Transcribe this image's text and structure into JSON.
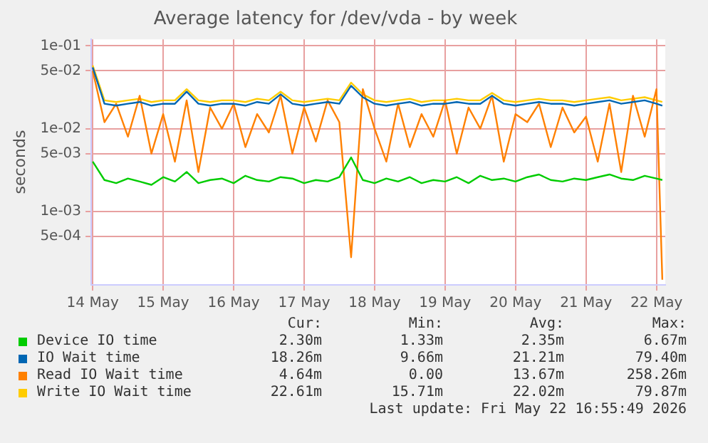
{
  "chart_data": {
    "type": "line",
    "title": "Average latency for /dev/vda - by week",
    "ylabel": "seconds",
    "log": "y",
    "grid": true,
    "legend": "bottom",
    "marker": "none",
    "line_style": "solid",
    "x": [
      "2026-05-14T00:00",
      "2026-05-14T04:00",
      "2026-05-14T08:00",
      "2026-05-14T12:00",
      "2026-05-14T16:00",
      "2026-05-14T20:00",
      "2026-05-15T00:00",
      "2026-05-15T04:00",
      "2026-05-15T08:00",
      "2026-05-15T12:00",
      "2026-05-15T16:00",
      "2026-05-15T20:00",
      "2026-05-16T00:00",
      "2026-05-16T04:00",
      "2026-05-16T08:00",
      "2026-05-16T12:00",
      "2026-05-16T16:00",
      "2026-05-16T20:00",
      "2026-05-17T00:00",
      "2026-05-17T04:00",
      "2026-05-17T08:00",
      "2026-05-17T12:00",
      "2026-05-17T16:00",
      "2026-05-17T20:00",
      "2026-05-18T00:00",
      "2026-05-18T04:00",
      "2026-05-18T08:00",
      "2026-05-18T12:00",
      "2026-05-18T16:00",
      "2026-05-18T20:00",
      "2026-05-19T00:00",
      "2026-05-19T04:00",
      "2026-05-19T08:00",
      "2026-05-19T12:00",
      "2026-05-19T16:00",
      "2026-05-19T20:00",
      "2026-05-20T00:00",
      "2026-05-20T04:00",
      "2026-05-20T08:00",
      "2026-05-20T12:00",
      "2026-05-20T16:00",
      "2026-05-20T20:00",
      "2026-05-21T00:00",
      "2026-05-21T04:00",
      "2026-05-21T08:00",
      "2026-05-21T12:00",
      "2026-05-21T16:00",
      "2026-05-21T20:00",
      "2026-05-22T00:00",
      "2026-05-22T02:00"
    ],
    "xlim": [
      "2026-05-13T23:30",
      "2026-05-22T03:00"
    ],
    "xticks": [
      {
        "value": "2026-05-14",
        "label": "14 May"
      },
      {
        "value": "2026-05-15",
        "label": "15 May"
      },
      {
        "value": "2026-05-16",
        "label": "16 May"
      },
      {
        "value": "2026-05-17",
        "label": "17 May"
      },
      {
        "value": "2026-05-18",
        "label": "18 May"
      },
      {
        "value": "2026-05-19",
        "label": "19 May"
      },
      {
        "value": "2026-05-20",
        "label": "20 May"
      },
      {
        "value": "2026-05-21",
        "label": "21 May"
      },
      {
        "value": "2026-05-22",
        "label": "22 May"
      }
    ],
    "ylim": [
      0.00013,
      0.12
    ],
    "yticks": [
      {
        "value": 0.1,
        "label": "1e-01"
      },
      {
        "value": 0.05,
        "label": "5e-02"
      },
      {
        "value": 0.01,
        "label": "1e-02"
      },
      {
        "value": 0.005,
        "label": "5e-03"
      },
      {
        "value": 0.001,
        "label": "1e-03"
      },
      {
        "value": 0.0005,
        "label": "5e-04"
      }
    ],
    "series": [
      {
        "name": "Device IO time",
        "color": "#00cc00",
        "values": [
          0.004,
          0.0024,
          0.0022,
          0.0025,
          0.0023,
          0.0021,
          0.0026,
          0.0023,
          0.003,
          0.0022,
          0.0024,
          0.0025,
          0.0022,
          0.0027,
          0.0024,
          0.0023,
          0.0026,
          0.0025,
          0.0022,
          0.0024,
          0.0023,
          0.0026,
          0.0045,
          0.0024,
          0.0022,
          0.0025,
          0.0023,
          0.0026,
          0.0022,
          0.0024,
          0.0023,
          0.0026,
          0.0022,
          0.0027,
          0.0024,
          0.0025,
          0.0023,
          0.0026,
          0.0028,
          0.0024,
          0.0023,
          0.0025,
          0.0024,
          0.0026,
          0.0028,
          0.0025,
          0.0024,
          0.0027,
          0.0025,
          0.0024
        ]
      },
      {
        "name": "IO Wait time",
        "color": "#0066b3",
        "values": [
          0.055,
          0.02,
          0.019,
          0.02,
          0.021,
          0.019,
          0.02,
          0.02,
          0.028,
          0.02,
          0.019,
          0.02,
          0.02,
          0.019,
          0.021,
          0.02,
          0.026,
          0.02,
          0.019,
          0.02,
          0.021,
          0.02,
          0.033,
          0.024,
          0.02,
          0.019,
          0.02,
          0.021,
          0.019,
          0.02,
          0.02,
          0.021,
          0.02,
          0.02,
          0.025,
          0.02,
          0.019,
          0.02,
          0.021,
          0.02,
          0.02,
          0.019,
          0.02,
          0.021,
          0.022,
          0.02,
          0.021,
          0.022,
          0.02,
          0.019
        ]
      },
      {
        "name": "Read IO Wait time",
        "color": "#ff8000",
        "values": [
          0.05,
          0.012,
          0.02,
          0.008,
          0.025,
          0.005,
          0.015,
          0.004,
          0.022,
          0.003,
          0.018,
          0.01,
          0.02,
          0.006,
          0.015,
          0.009,
          0.025,
          0.005,
          0.018,
          0.007,
          0.022,
          0.012,
          0.00028,
          0.03,
          0.01,
          0.004,
          0.02,
          0.006,
          0.015,
          0.008,
          0.022,
          0.005,
          0.018,
          0.01,
          0.025,
          0.004,
          0.015,
          0.012,
          0.02,
          0.006,
          0.018,
          0.009,
          0.014,
          0.004,
          0.02,
          0.003,
          0.025,
          0.008,
          0.03,
          0.00015
        ]
      },
      {
        "name": "Write IO Wait time",
        "color": "#ffcc00",
        "values": [
          0.058,
          0.022,
          0.021,
          0.022,
          0.023,
          0.021,
          0.022,
          0.022,
          0.03,
          0.022,
          0.021,
          0.022,
          0.022,
          0.021,
          0.023,
          0.022,
          0.028,
          0.022,
          0.021,
          0.022,
          0.023,
          0.022,
          0.036,
          0.026,
          0.022,
          0.021,
          0.022,
          0.023,
          0.021,
          0.022,
          0.022,
          0.023,
          0.022,
          0.022,
          0.027,
          0.022,
          0.021,
          0.022,
          0.023,
          0.022,
          0.022,
          0.021,
          0.022,
          0.023,
          0.024,
          0.022,
          0.023,
          0.024,
          0.022,
          0.021
        ]
      }
    ],
    "annotations": [
      "Cur:",
      "Min:",
      "Avg:",
      "Max:",
      "2.30m",
      "1.33m",
      "2.35m",
      "6.67m",
      "18.26m",
      "9.66m",
      "21.21m",
      "79.40m",
      "4.64m",
      "0.00",
      "13.67m",
      "258.26m",
      "22.61m",
      "15.71m",
      "22.02m",
      "79.87m",
      "Last update: Fri May 22 16:55:49 2026"
    ]
  }
}
